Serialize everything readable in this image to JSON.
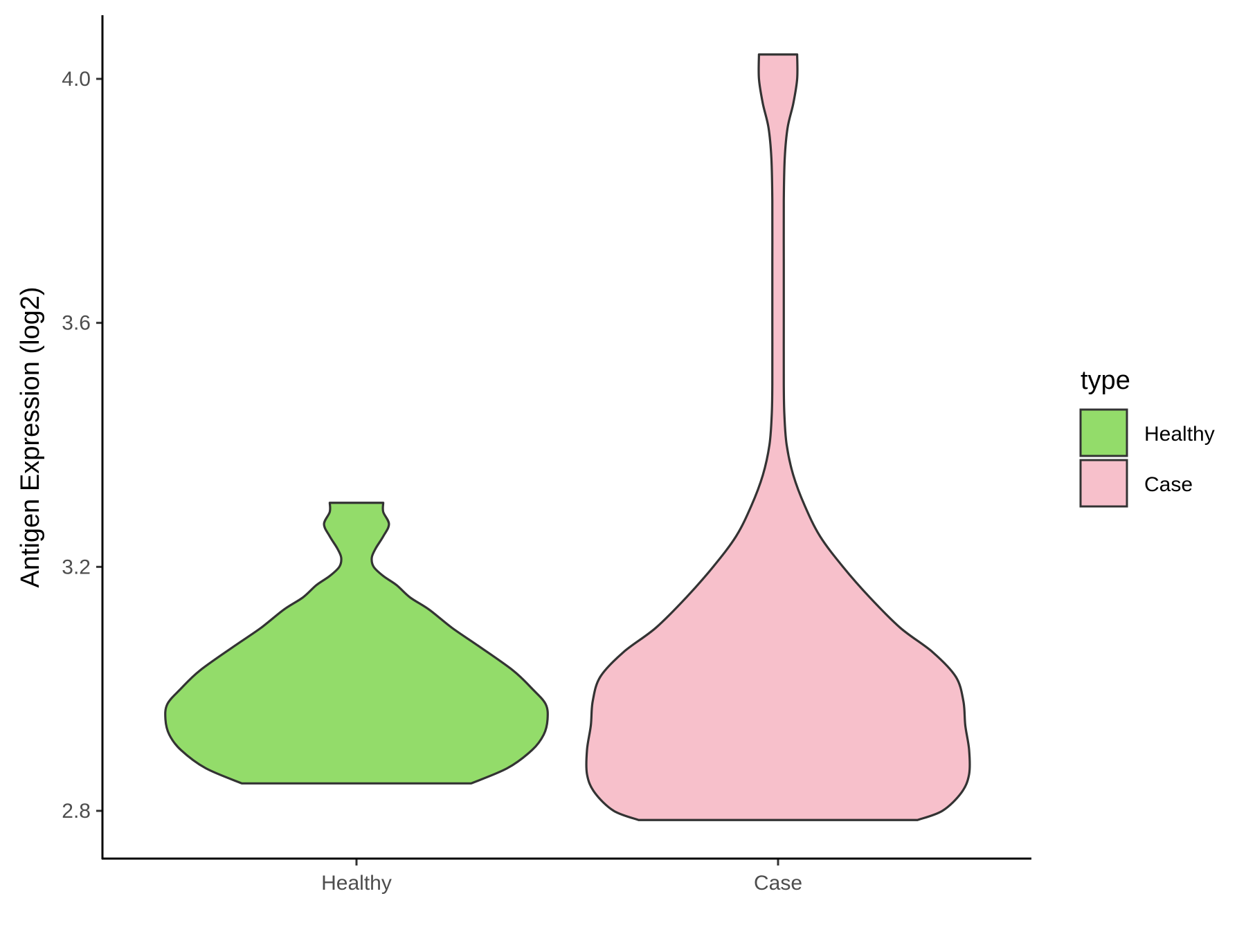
{
  "chart_data": {
    "type": "violin",
    "ylabel": "Antigen Expression (log2)",
    "xlabel": "",
    "ylim": [
      2.72,
      4.1
    ],
    "yticks": [
      2.8,
      3.2,
      3.6,
      4.0
    ],
    "ytick_labels": [
      "2.8",
      "3.2",
      "3.6",
      "4.0"
    ],
    "categories": [
      "Healthy",
      "Case"
    ],
    "legend": {
      "title": "type",
      "position": "right",
      "entries": [
        "Healthy",
        "Case"
      ]
    },
    "grid": false,
    "series": [
      {
        "name": "Healthy",
        "color": "#93dc6a",
        "min": 2.845,
        "max": 3.305,
        "density": [
          [
            2.845,
            0.6
          ],
          [
            2.87,
            0.79
          ],
          [
            2.9,
            0.92
          ],
          [
            2.925,
            0.98
          ],
          [
            2.95,
            1.0
          ],
          [
            2.975,
            0.99
          ],
          [
            3.0,
            0.92
          ],
          [
            3.03,
            0.82
          ],
          [
            3.07,
            0.64
          ],
          [
            3.1,
            0.5
          ],
          [
            3.13,
            0.38
          ],
          [
            3.15,
            0.28
          ],
          [
            3.17,
            0.21
          ],
          [
            3.185,
            0.14
          ],
          [
            3.2,
            0.09
          ],
          [
            3.215,
            0.08
          ],
          [
            3.23,
            0.1
          ],
          [
            3.25,
            0.14
          ],
          [
            3.27,
            0.17
          ],
          [
            3.29,
            0.14
          ],
          [
            3.305,
            0.14
          ]
        ]
      },
      {
        "name": "Case",
        "color": "#f7c0cb",
        "min": 2.785,
        "max": 4.04,
        "density": [
          [
            2.785,
            0.73
          ],
          [
            2.8,
            0.86
          ],
          [
            2.83,
            0.96
          ],
          [
            2.86,
            1.0
          ],
          [
            2.9,
            1.0
          ],
          [
            2.94,
            0.98
          ],
          [
            2.98,
            0.97
          ],
          [
            3.02,
            0.93
          ],
          [
            3.06,
            0.81
          ],
          [
            3.1,
            0.64
          ],
          [
            3.15,
            0.48
          ],
          [
            3.2,
            0.34
          ],
          [
            3.25,
            0.22
          ],
          [
            3.3,
            0.14
          ],
          [
            3.35,
            0.08
          ],
          [
            3.4,
            0.045
          ],
          [
            3.45,
            0.033
          ],
          [
            3.5,
            0.03
          ],
          [
            3.6,
            0.03
          ],
          [
            3.7,
            0.03
          ],
          [
            3.8,
            0.03
          ],
          [
            3.87,
            0.035
          ],
          [
            3.92,
            0.05
          ],
          [
            3.96,
            0.08
          ],
          [
            4.0,
            0.1
          ],
          [
            4.04,
            0.1
          ]
        ]
      }
    ]
  }
}
